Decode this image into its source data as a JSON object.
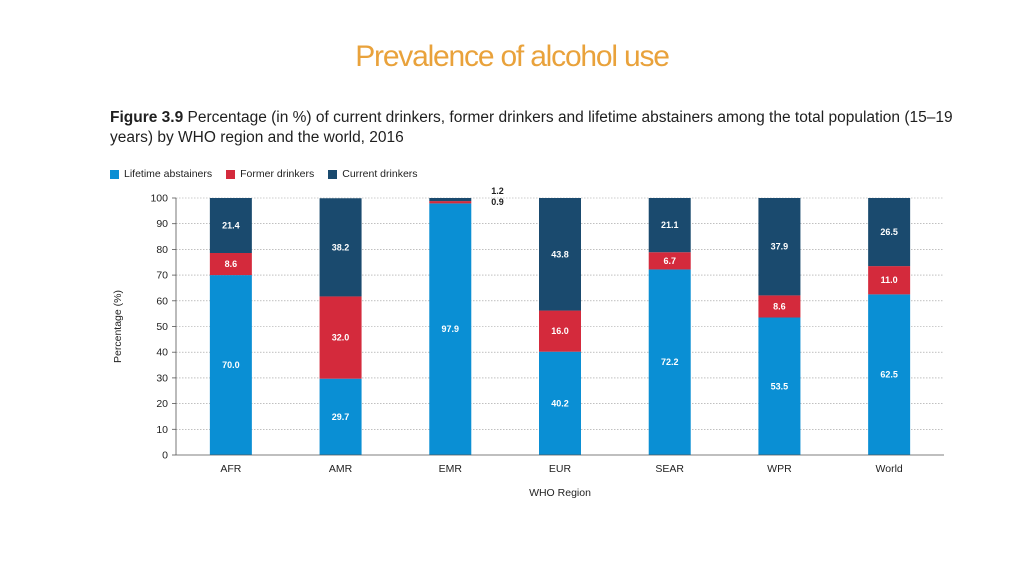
{
  "slide": {
    "title": "Prevalence of alcohol use"
  },
  "figure": {
    "number": "Figure 3.9",
    "caption": "Percentage (in %) of current drinkers, former drinkers and lifetime abstainers among the total population (15–19 years) by WHO region and the world, 2016"
  },
  "chart_data": {
    "type": "bar",
    "stacked": true,
    "categories": [
      "AFR",
      "AMR",
      "EMR",
      "EUR",
      "SEAR",
      "WPR",
      "World"
    ],
    "series": [
      {
        "name": "Lifetime abstainers",
        "color": "#0a8fd4",
        "values": [
          70.0,
          29.7,
          97.9,
          40.2,
          72.2,
          53.5,
          62.5
        ],
        "labels": [
          "70.0",
          "29.7",
          "97.9",
          "40.2",
          "72.2",
          "53.5",
          "62.5"
        ]
      },
      {
        "name": "Former drinkers",
        "color": "#d42a3c",
        "values": [
          8.6,
          32.0,
          0.9,
          16.0,
          6.7,
          8.6,
          11.0
        ],
        "labels": [
          "8.6",
          "32.0",
          "0.9",
          "16.0",
          "6.7",
          "8.6",
          "11.0"
        ]
      },
      {
        "name": "Current drinkers",
        "color": "#1a4a6e",
        "values": [
          21.4,
          38.2,
          1.2,
          43.8,
          21.1,
          37.9,
          26.5
        ],
        "labels": [
          "21.4",
          "38.2",
          "1.2",
          "43.8",
          "21.1",
          "37.9",
          "26.5"
        ]
      }
    ],
    "xlabel": "WHO Region",
    "ylabel": "Percentage (%)",
    "ylim": [
      0,
      100
    ],
    "yticks": [
      "0",
      "10",
      "20",
      "30",
      "40",
      "50",
      "60",
      "70",
      "80",
      "90",
      "100"
    ],
    "grid": true,
    "legend_position": "top-left"
  }
}
